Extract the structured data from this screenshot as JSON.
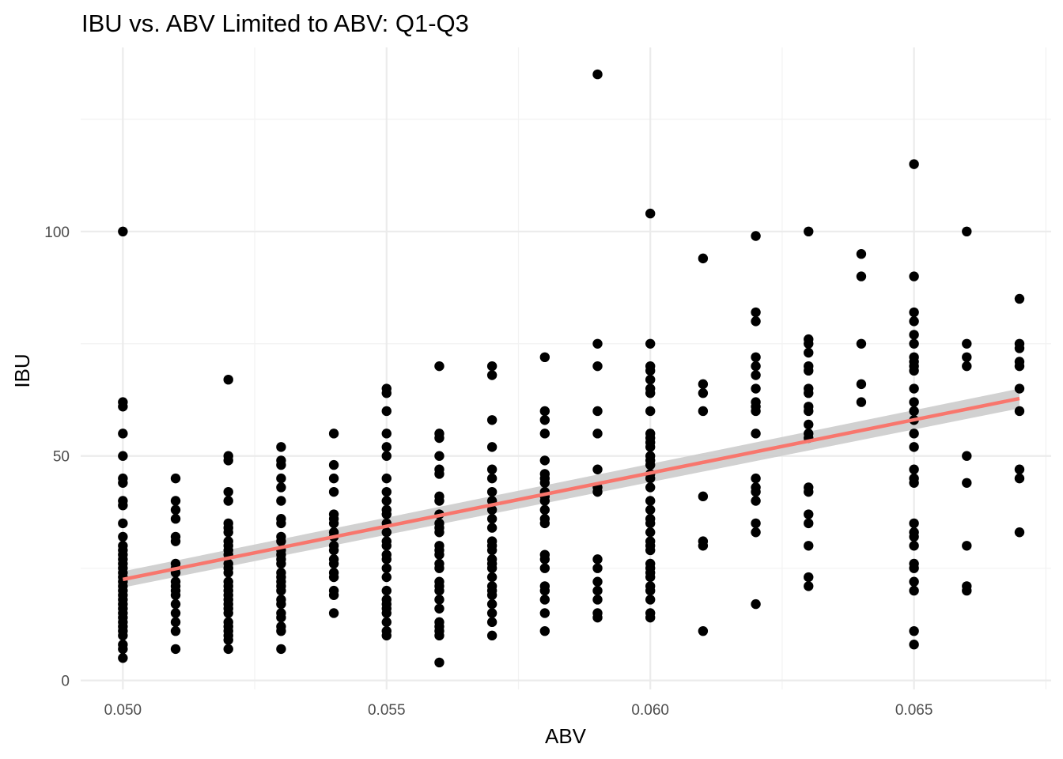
{
  "chart_data": {
    "type": "scatter",
    "title": "IBU vs. ABV Limited to ABV: Q1-Q3",
    "xlabel": "ABV",
    "ylabel": "IBU",
    "xlim": [
      0.0492,
      0.0676
    ],
    "ylim": [
      -2,
      141
    ],
    "x_ticks": [
      0.05,
      0.055,
      0.06,
      0.065
    ],
    "x_tick_labels": [
      "0.050",
      "0.055",
      "0.060",
      "0.065"
    ],
    "y_ticks": [
      0,
      50,
      100
    ],
    "y_tick_labels": [
      "0",
      "50",
      "100"
    ],
    "grid": true,
    "point_color": "#000000",
    "fit_line": {
      "color": "#F8766D",
      "ci_color": "#cccccc",
      "x": [
        0.05,
        0.067
      ],
      "y": [
        22.5,
        62.8
      ],
      "ci_half_width": [
        1.8,
        2.2
      ]
    },
    "points": [
      [
        0.05,
        100
      ],
      [
        0.05,
        62
      ],
      [
        0.05,
        61
      ],
      [
        0.05,
        55
      ],
      [
        0.05,
        50
      ],
      [
        0.05,
        45
      ],
      [
        0.05,
        44
      ],
      [
        0.05,
        40
      ],
      [
        0.05,
        39
      ],
      [
        0.05,
        35
      ],
      [
        0.05,
        32
      ],
      [
        0.05,
        30
      ],
      [
        0.05,
        29
      ],
      [
        0.05,
        28
      ],
      [
        0.05,
        27
      ],
      [
        0.05,
        26
      ],
      [
        0.05,
        25
      ],
      [
        0.05,
        24
      ],
      [
        0.05,
        23
      ],
      [
        0.05,
        22
      ],
      [
        0.05,
        21
      ],
      [
        0.05,
        20
      ],
      [
        0.05,
        19
      ],
      [
        0.05,
        18
      ],
      [
        0.05,
        17
      ],
      [
        0.05,
        16
      ],
      [
        0.05,
        15
      ],
      [
        0.05,
        14
      ],
      [
        0.05,
        13
      ],
      [
        0.05,
        12
      ],
      [
        0.05,
        11
      ],
      [
        0.05,
        10
      ],
      [
        0.05,
        8
      ],
      [
        0.05,
        7
      ],
      [
        0.05,
        5
      ],
      [
        0.051,
        45
      ],
      [
        0.051,
        40
      ],
      [
        0.051,
        38
      ],
      [
        0.051,
        36
      ],
      [
        0.051,
        32
      ],
      [
        0.051,
        31
      ],
      [
        0.051,
        26
      ],
      [
        0.051,
        25
      ],
      [
        0.051,
        24
      ],
      [
        0.051,
        22
      ],
      [
        0.051,
        21
      ],
      [
        0.051,
        20
      ],
      [
        0.051,
        19
      ],
      [
        0.051,
        17
      ],
      [
        0.051,
        15
      ],
      [
        0.051,
        13
      ],
      [
        0.051,
        11
      ],
      [
        0.051,
        7
      ],
      [
        0.052,
        67
      ],
      [
        0.052,
        50
      ],
      [
        0.052,
        49
      ],
      [
        0.052,
        42
      ],
      [
        0.052,
        40
      ],
      [
        0.052,
        35
      ],
      [
        0.052,
        34
      ],
      [
        0.052,
        33
      ],
      [
        0.052,
        31
      ],
      [
        0.052,
        30
      ],
      [
        0.052,
        29
      ],
      [
        0.052,
        28
      ],
      [
        0.052,
        26
      ],
      [
        0.052,
        25
      ],
      [
        0.052,
        24
      ],
      [
        0.052,
        22
      ],
      [
        0.052,
        21
      ],
      [
        0.052,
        20
      ],
      [
        0.052,
        19
      ],
      [
        0.052,
        18
      ],
      [
        0.052,
        17
      ],
      [
        0.052,
        16
      ],
      [
        0.052,
        15
      ],
      [
        0.052,
        13
      ],
      [
        0.052,
        12
      ],
      [
        0.052,
        11
      ],
      [
        0.052,
        10
      ],
      [
        0.052,
        9
      ],
      [
        0.052,
        7
      ],
      [
        0.053,
        52
      ],
      [
        0.053,
        49
      ],
      [
        0.053,
        48
      ],
      [
        0.053,
        45
      ],
      [
        0.053,
        43
      ],
      [
        0.053,
        40
      ],
      [
        0.053,
        36
      ],
      [
        0.053,
        35
      ],
      [
        0.053,
        32
      ],
      [
        0.053,
        31
      ],
      [
        0.053,
        29
      ],
      [
        0.053,
        28
      ],
      [
        0.053,
        27
      ],
      [
        0.053,
        26
      ],
      [
        0.053,
        24
      ],
      [
        0.053,
        23
      ],
      [
        0.053,
        22
      ],
      [
        0.053,
        21
      ],
      [
        0.053,
        20
      ],
      [
        0.053,
        18
      ],
      [
        0.053,
        17
      ],
      [
        0.053,
        15
      ],
      [
        0.053,
        14
      ],
      [
        0.053,
        12
      ],
      [
        0.053,
        11
      ],
      [
        0.053,
        7
      ],
      [
        0.054,
        55
      ],
      [
        0.054,
        48
      ],
      [
        0.054,
        45
      ],
      [
        0.054,
        42
      ],
      [
        0.054,
        37
      ],
      [
        0.054,
        36
      ],
      [
        0.054,
        35
      ],
      [
        0.054,
        33
      ],
      [
        0.054,
        32
      ],
      [
        0.054,
        30
      ],
      [
        0.054,
        29
      ],
      [
        0.054,
        27
      ],
      [
        0.054,
        26
      ],
      [
        0.054,
        24
      ],
      [
        0.054,
        23
      ],
      [
        0.054,
        20
      ],
      [
        0.054,
        19
      ],
      [
        0.054,
        15
      ],
      [
        0.055,
        65
      ],
      [
        0.055,
        64
      ],
      [
        0.055,
        60
      ],
      [
        0.055,
        55
      ],
      [
        0.055,
        52
      ],
      [
        0.055,
        50
      ],
      [
        0.055,
        45
      ],
      [
        0.055,
        42
      ],
      [
        0.055,
        40
      ],
      [
        0.055,
        38
      ],
      [
        0.055,
        37
      ],
      [
        0.055,
        35
      ],
      [
        0.055,
        33
      ],
      [
        0.055,
        31
      ],
      [
        0.055,
        30
      ],
      [
        0.055,
        28
      ],
      [
        0.055,
        27
      ],
      [
        0.055,
        25
      ],
      [
        0.055,
        23
      ],
      [
        0.055,
        20
      ],
      [
        0.055,
        18
      ],
      [
        0.055,
        17
      ],
      [
        0.055,
        16
      ],
      [
        0.055,
        15
      ],
      [
        0.055,
        13
      ],
      [
        0.055,
        11
      ],
      [
        0.055,
        10
      ],
      [
        0.056,
        70
      ],
      [
        0.056,
        55
      ],
      [
        0.056,
        54
      ],
      [
        0.056,
        50
      ],
      [
        0.056,
        47
      ],
      [
        0.056,
        46
      ],
      [
        0.056,
        41
      ],
      [
        0.056,
        40
      ],
      [
        0.056,
        37
      ],
      [
        0.056,
        35
      ],
      [
        0.056,
        34
      ],
      [
        0.056,
        33
      ],
      [
        0.056,
        30
      ],
      [
        0.056,
        29
      ],
      [
        0.056,
        28
      ],
      [
        0.056,
        26
      ],
      [
        0.056,
        25
      ],
      [
        0.056,
        22
      ],
      [
        0.056,
        21
      ],
      [
        0.056,
        20
      ],
      [
        0.056,
        18
      ],
      [
        0.056,
        16
      ],
      [
        0.056,
        13
      ],
      [
        0.056,
        12
      ],
      [
        0.056,
        11
      ],
      [
        0.056,
        10
      ],
      [
        0.056,
        4
      ],
      [
        0.057,
        70
      ],
      [
        0.057,
        68
      ],
      [
        0.057,
        58
      ],
      [
        0.057,
        52
      ],
      [
        0.057,
        47
      ],
      [
        0.057,
        45
      ],
      [
        0.057,
        42
      ],
      [
        0.057,
        40
      ],
      [
        0.057,
        38
      ],
      [
        0.057,
        36
      ],
      [
        0.057,
        34
      ],
      [
        0.057,
        31
      ],
      [
        0.057,
        30
      ],
      [
        0.057,
        29
      ],
      [
        0.057,
        27
      ],
      [
        0.057,
        26
      ],
      [
        0.057,
        25
      ],
      [
        0.057,
        23
      ],
      [
        0.057,
        21
      ],
      [
        0.057,
        20
      ],
      [
        0.057,
        19
      ],
      [
        0.057,
        17
      ],
      [
        0.057,
        15
      ],
      [
        0.057,
        13
      ],
      [
        0.057,
        10
      ],
      [
        0.058,
        72
      ],
      [
        0.058,
        60
      ],
      [
        0.058,
        58
      ],
      [
        0.058,
        55
      ],
      [
        0.058,
        49
      ],
      [
        0.058,
        46
      ],
      [
        0.058,
        45
      ],
      [
        0.058,
        44
      ],
      [
        0.058,
        42
      ],
      [
        0.058,
        41
      ],
      [
        0.058,
        40
      ],
      [
        0.058,
        38
      ],
      [
        0.058,
        36
      ],
      [
        0.058,
        35
      ],
      [
        0.058,
        28
      ],
      [
        0.058,
        27
      ],
      [
        0.058,
        25
      ],
      [
        0.058,
        21
      ],
      [
        0.058,
        20
      ],
      [
        0.058,
        18
      ],
      [
        0.058,
        15
      ],
      [
        0.058,
        11
      ],
      [
        0.059,
        135
      ],
      [
        0.059,
        75
      ],
      [
        0.059,
        70
      ],
      [
        0.059,
        60
      ],
      [
        0.059,
        55
      ],
      [
        0.059,
        47
      ],
      [
        0.059,
        43
      ],
      [
        0.059,
        42
      ],
      [
        0.059,
        27
      ],
      [
        0.059,
        25
      ],
      [
        0.059,
        22
      ],
      [
        0.059,
        20
      ],
      [
        0.059,
        18
      ],
      [
        0.059,
        15
      ],
      [
        0.059,
        14
      ],
      [
        0.06,
        104
      ],
      [
        0.06,
        75
      ],
      [
        0.06,
        70
      ],
      [
        0.06,
        69
      ],
      [
        0.06,
        67
      ],
      [
        0.06,
        65
      ],
      [
        0.06,
        64
      ],
      [
        0.06,
        60
      ],
      [
        0.06,
        55
      ],
      [
        0.06,
        54
      ],
      [
        0.06,
        53
      ],
      [
        0.06,
        52
      ],
      [
        0.06,
        50
      ],
      [
        0.06,
        49
      ],
      [
        0.06,
        48
      ],
      [
        0.06,
        46
      ],
      [
        0.06,
        45
      ],
      [
        0.06,
        43
      ],
      [
        0.06,
        40
      ],
      [
        0.06,
        38
      ],
      [
        0.06,
        36
      ],
      [
        0.06,
        35
      ],
      [
        0.06,
        33
      ],
      [
        0.06,
        31
      ],
      [
        0.06,
        30
      ],
      [
        0.06,
        29
      ],
      [
        0.06,
        26
      ],
      [
        0.06,
        25
      ],
      [
        0.06,
        24
      ],
      [
        0.06,
        23
      ],
      [
        0.06,
        21
      ],
      [
        0.06,
        20
      ],
      [
        0.06,
        18
      ],
      [
        0.06,
        15
      ],
      [
        0.06,
        14
      ],
      [
        0.061,
        94
      ],
      [
        0.061,
        66
      ],
      [
        0.061,
        64
      ],
      [
        0.061,
        60
      ],
      [
        0.061,
        41
      ],
      [
        0.061,
        31
      ],
      [
        0.061,
        30
      ],
      [
        0.061,
        11
      ],
      [
        0.062,
        99
      ],
      [
        0.062,
        82
      ],
      [
        0.062,
        80
      ],
      [
        0.062,
        72
      ],
      [
        0.062,
        70
      ],
      [
        0.062,
        68
      ],
      [
        0.062,
        65
      ],
      [
        0.062,
        62
      ],
      [
        0.062,
        61
      ],
      [
        0.062,
        60
      ],
      [
        0.062,
        55
      ],
      [
        0.062,
        45
      ],
      [
        0.062,
        43
      ],
      [
        0.062,
        42
      ],
      [
        0.062,
        40
      ],
      [
        0.062,
        35
      ],
      [
        0.062,
        33
      ],
      [
        0.062,
        17
      ],
      [
        0.063,
        100
      ],
      [
        0.063,
        76
      ],
      [
        0.063,
        75
      ],
      [
        0.063,
        73
      ],
      [
        0.063,
        70
      ],
      [
        0.063,
        69
      ],
      [
        0.063,
        65
      ],
      [
        0.063,
        64
      ],
      [
        0.063,
        61
      ],
      [
        0.063,
        60
      ],
      [
        0.063,
        57
      ],
      [
        0.063,
        55
      ],
      [
        0.063,
        54
      ],
      [
        0.063,
        43
      ],
      [
        0.063,
        42
      ],
      [
        0.063,
        37
      ],
      [
        0.063,
        35
      ],
      [
        0.063,
        30
      ],
      [
        0.063,
        23
      ],
      [
        0.063,
        21
      ],
      [
        0.064,
        95
      ],
      [
        0.064,
        90
      ],
      [
        0.064,
        75
      ],
      [
        0.064,
        66
      ],
      [
        0.064,
        62
      ],
      [
        0.065,
        115
      ],
      [
        0.065,
        90
      ],
      [
        0.065,
        82
      ],
      [
        0.065,
        80
      ],
      [
        0.065,
        77
      ],
      [
        0.065,
        75
      ],
      [
        0.065,
        72
      ],
      [
        0.065,
        71
      ],
      [
        0.065,
        70
      ],
      [
        0.065,
        69
      ],
      [
        0.065,
        65
      ],
      [
        0.065,
        62
      ],
      [
        0.065,
        60
      ],
      [
        0.065,
        58
      ],
      [
        0.065,
        55
      ],
      [
        0.065,
        52
      ],
      [
        0.065,
        47
      ],
      [
        0.065,
        45
      ],
      [
        0.065,
        44
      ],
      [
        0.065,
        35
      ],
      [
        0.065,
        33
      ],
      [
        0.065,
        32
      ],
      [
        0.065,
        30
      ],
      [
        0.065,
        26
      ],
      [
        0.065,
        25
      ],
      [
        0.065,
        22
      ],
      [
        0.065,
        20
      ],
      [
        0.065,
        11
      ],
      [
        0.065,
        8
      ],
      [
        0.066,
        100
      ],
      [
        0.066,
        75
      ],
      [
        0.066,
        72
      ],
      [
        0.066,
        70
      ],
      [
        0.066,
        50
      ],
      [
        0.066,
        44
      ],
      [
        0.066,
        30
      ],
      [
        0.066,
        21
      ],
      [
        0.066,
        20
      ],
      [
        0.067,
        85
      ],
      [
        0.067,
        75
      ],
      [
        0.067,
        74
      ],
      [
        0.067,
        71
      ],
      [
        0.067,
        70
      ],
      [
        0.067,
        65
      ],
      [
        0.067,
        60
      ],
      [
        0.067,
        47
      ],
      [
        0.067,
        45
      ],
      [
        0.067,
        33
      ]
    ]
  }
}
